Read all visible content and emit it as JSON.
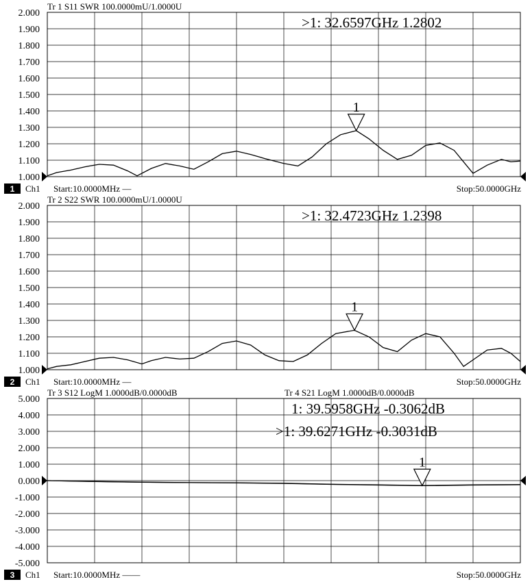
{
  "chart_data": [
    {
      "type": "line",
      "trace_label": "Tr 1  S11 SWR 100.0000mU/1.0000U",
      "channel_number": "1",
      "channel_label": "Ch1",
      "start_label": "Start:10.0000MHz",
      "start_suffix": "—",
      "stop_label": "Stop:50.0000GHz",
      "xlim": [
        0.01,
        50
      ],
      "ylim": [
        1.0,
        2.0
      ],
      "yticks": [
        "2.000",
        "1.900",
        "1.800",
        "1.700",
        "1.600",
        "1.500",
        "1.400",
        "1.300",
        "1.200",
        "1.100",
        "1.000"
      ],
      "marker_readouts": [
        ">1:   32.6597GHz  1.2802"
      ],
      "marker": {
        "label": "1",
        "x": 32.6597,
        "y": 1.2802
      },
      "series": [
        {
          "x": [
            0.01,
            1,
            2.5,
            4,
            5.5,
            7,
            8.5,
            9.5,
            11,
            12.5,
            14,
            15.5,
            17,
            18.5,
            20,
            21.5,
            23,
            25,
            26.5,
            28,
            29.5,
            31,
            32.66,
            34,
            35.5,
            37,
            38.5,
            40,
            41.5,
            43,
            44,
            45,
            46.5,
            48,
            49,
            50
          ],
          "y": [
            1.005,
            1.025,
            1.04,
            1.06,
            1.075,
            1.07,
            1.035,
            1.005,
            1.05,
            1.08,
            1.065,
            1.045,
            1.09,
            1.14,
            1.155,
            1.135,
            1.11,
            1.08,
            1.065,
            1.12,
            1.2,
            1.255,
            1.28,
            1.23,
            1.16,
            1.105,
            1.13,
            1.19,
            1.205,
            1.16,
            1.09,
            1.02,
            1.07,
            1.105,
            1.09,
            1.095
          ]
        }
      ]
    },
    {
      "type": "line",
      "trace_label": "Tr 2  S22 SWR 100.0000mU/1.0000U",
      "channel_number": "2",
      "channel_label": "Ch1",
      "start_label": "Start:10.0000MHz",
      "start_suffix": "—",
      "stop_label": "Stop:50.0000GHz",
      "xlim": [
        0.01,
        50
      ],
      "ylim": [
        1.0,
        2.0
      ],
      "yticks": [
        "2.000",
        "1.900",
        "1.800",
        "1.700",
        "1.600",
        "1.500",
        "1.400",
        "1.300",
        "1.200",
        "1.100",
        "1.000"
      ],
      "marker_readouts": [
        ">1:   32.4723GHz  1.2398"
      ],
      "marker": {
        "label": "1",
        "x": 32.4723,
        "y": 1.2398
      },
      "series": [
        {
          "x": [
            0.01,
            1,
            2.5,
            4,
            5.5,
            7,
            8.5,
            10,
            11,
            12.5,
            14,
            15.5,
            17,
            18.5,
            20,
            21.5,
            23,
            24.5,
            26,
            27.5,
            29,
            30.5,
            32.47,
            34,
            35.5,
            37,
            38.5,
            40,
            41.5,
            43,
            44,
            45,
            46.5,
            48,
            49,
            50
          ],
          "y": [
            1.005,
            1.02,
            1.03,
            1.05,
            1.07,
            1.075,
            1.06,
            1.035,
            1.055,
            1.075,
            1.065,
            1.07,
            1.11,
            1.16,
            1.175,
            1.15,
            1.09,
            1.055,
            1.05,
            1.09,
            1.16,
            1.22,
            1.24,
            1.2,
            1.135,
            1.11,
            1.18,
            1.22,
            1.2,
            1.1,
            1.02,
            1.06,
            1.12,
            1.13,
            1.1,
            1.05
          ]
        }
      ]
    },
    {
      "type": "line",
      "trace_labels": [
        "Tr 3  S12 LogM 1.0000dB/0.0000dB",
        "Tr 4  S21 LogM 1.0000dB/0.0000dB"
      ],
      "channel_number": "3",
      "channel_label": "Ch1",
      "start_label": "Start:10.0000MHz",
      "start_suffix": "——",
      "stop_label": "Stop:50.0000GHz",
      "xlim": [
        0.01,
        50
      ],
      "ylim": [
        -5.0,
        5.0
      ],
      "yticks": [
        "5.000",
        "4.000",
        "3.000",
        "2.000",
        "1.000",
        "0.000",
        "-1.000",
        "-2.000",
        "-3.000",
        "-4.000",
        "-5.000"
      ],
      "marker_readouts": [
        "1:    39.5958GHz  -0.3062dB",
        ">1:    39.6271GHz  -0.3031dB"
      ],
      "marker": {
        "label": "1",
        "x": 39.6271,
        "y": -0.3031
      },
      "series": [
        {
          "x": [
            0.01,
            5,
            10,
            15,
            20,
            25,
            30,
            35,
            39.6,
            45,
            50
          ],
          "y": [
            0.0,
            -0.05,
            -0.09,
            -0.12,
            -0.13,
            -0.16,
            -0.22,
            -0.26,
            -0.3,
            -0.26,
            -0.24
          ]
        },
        {
          "x": [
            0.01,
            5,
            10,
            15,
            20,
            25,
            30,
            35,
            39.6,
            45,
            50
          ],
          "y": [
            0.0,
            -0.06,
            -0.1,
            -0.12,
            -0.14,
            -0.17,
            -0.23,
            -0.27,
            -0.31,
            -0.27,
            -0.25
          ]
        }
      ]
    }
  ]
}
